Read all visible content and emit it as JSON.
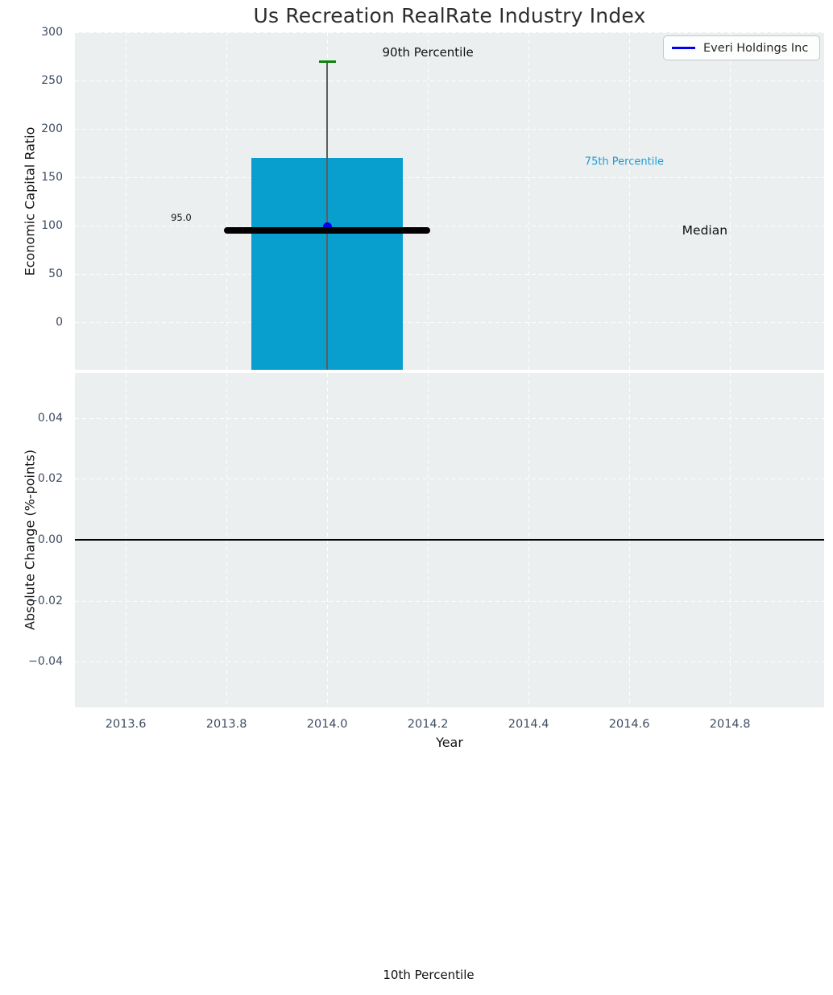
{
  "figure": {
    "title": "Us Recreation RealRate Industry Index",
    "bottom_annotation": "10th Percentile"
  },
  "legend": {
    "label": "Everi Holdings Inc"
  },
  "colors": {
    "axes_bg": "#ebeff0",
    "grid": "#ffffff",
    "bar": "#089ece",
    "cap_green": "#0a830a",
    "median_black": "#000000",
    "whisker_gray": "#5d5d5d",
    "everi_blue": "#0000ee",
    "tick_label": "#3e4c62",
    "annotation_75": "#1b9ed3"
  },
  "chart_data": {
    "type": "box-percentile chart with company marker (top panel) + change panel (bottom)",
    "title": "Us Recreation RealRate Industry Index",
    "xlabel": "Year",
    "xlim": [
      2013.5,
      2014.99
    ],
    "grid": "white dashed, on",
    "legend_position": "upper right",
    "xticks": [
      {
        "label": "2013.6",
        "value": 2013.6
      },
      {
        "label": "2013.8",
        "value": 2013.8
      },
      {
        "label": "2014.0",
        "value": 2014.0
      },
      {
        "label": "2014.2",
        "value": 2014.2
      },
      {
        "label": "2014.4",
        "value": 2014.4
      },
      {
        "label": "2014.6",
        "value": 2014.6
      },
      {
        "label": "2014.8",
        "value": 2014.8
      }
    ],
    "panels": [
      {
        "name": "economic_capital_ratio",
        "ylabel": "Economic Capital Ratio",
        "ylim": [
          -49,
          300
        ],
        "yticks": [
          {
            "label": "300",
            "value": 300
          },
          {
            "label": "250",
            "value": 250
          },
          {
            "label": "200",
            "value": 200
          },
          {
            "label": "150",
            "value": 150
          },
          {
            "label": "100",
            "value": 100
          },
          {
            "label": "50",
            "value": 50
          },
          {
            "label": "0",
            "value": 0
          }
        ],
        "box": {
          "x_left": 2013.85,
          "x_right": 2014.15,
          "top_value": 170,
          "bottom_value": null
        },
        "whisker": {
          "x": 2014.0,
          "top_value": 270,
          "bottom_value": null
        },
        "cap_value": 270,
        "percentiles": {
          "p90": 270,
          "p75": 170,
          "median": 95
        },
        "median_line": {
          "x_left": 2013.795,
          "x_right": 2014.205,
          "value": 95
        },
        "company_point": {
          "name": "Everi Holdings Inc",
          "x": 2014.0,
          "y": 99
        },
        "annotations": [
          {
            "id": "a90",
            "text": "90th Percentile",
            "x": 2014.2,
            "y": 279
          },
          {
            "id": "a75",
            "text": "75th Percentile",
            "x": 2014.59,
            "y": 166
          },
          {
            "id": "amed",
            "text": "Median",
            "x": 2014.75,
            "y": 95
          },
          {
            "id": "a95",
            "text": "95.0",
            "x": 2013.71,
            "y": 108
          }
        ]
      },
      {
        "name": "absolute_change",
        "ylabel": "Absolute Change (%-points)",
        "ylim": [
          -0.055,
          0.0548
        ],
        "yticks": [
          {
            "label": "0.04",
            "value": 0.04
          },
          {
            "label": "0.02",
            "value": 0.02
          },
          {
            "label": "0.00",
            "value": 0.0
          },
          {
            "label": "−0.02",
            "value": -0.02
          },
          {
            "label": "−0.04",
            "value": -0.04
          }
        ],
        "zero_line": 0.0
      }
    ]
  }
}
